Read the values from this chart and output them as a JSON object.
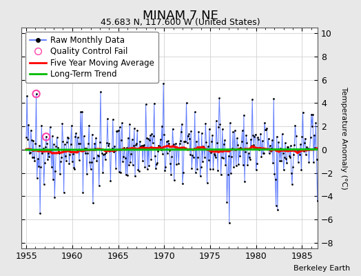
{
  "title": "MINAM 7 NE",
  "subtitle": "45.683 N, 117.600 W (United States)",
  "ylabel": "Temperature Anomaly (°C)",
  "xlim": [
    1954.5,
    1986.7
  ],
  "ylim": [
    -8.5,
    10.5
  ],
  "yticks": [
    -8,
    -6,
    -4,
    -2,
    0,
    2,
    4,
    6,
    8,
    10
  ],
  "xticks": [
    1955,
    1960,
    1965,
    1970,
    1975,
    1980,
    1985
  ],
  "background_color": "#e8e8e8",
  "plot_bg_color": "#ffffff",
  "grid_color": "#cccccc",
  "raw_line_color": "#4466ff",
  "raw_dot_color": "#000000",
  "qc_fail_color": "#ff44aa",
  "moving_avg_color": "#ff0000",
  "trend_color": "#00bb00",
  "watermark": "Berkeley Earth",
  "title_fontsize": 13,
  "subtitle_fontsize": 9,
  "ylabel_fontsize": 8,
  "tick_fontsize": 9,
  "legend_fontsize": 8.5,
  "start_year": 1955,
  "n_years": 32,
  "random_seed": 42,
  "qc_fail_indices": [
    13,
    26
  ],
  "extremes": {
    "1": 4.6,
    "13": 4.8,
    "18": -5.5,
    "26": 1.1,
    "97": 5.0,
    "87": -4.6,
    "265": -6.3,
    "326": -4.8,
    "328": -5.2,
    "295": 4.3,
    "380": -4.4
  }
}
